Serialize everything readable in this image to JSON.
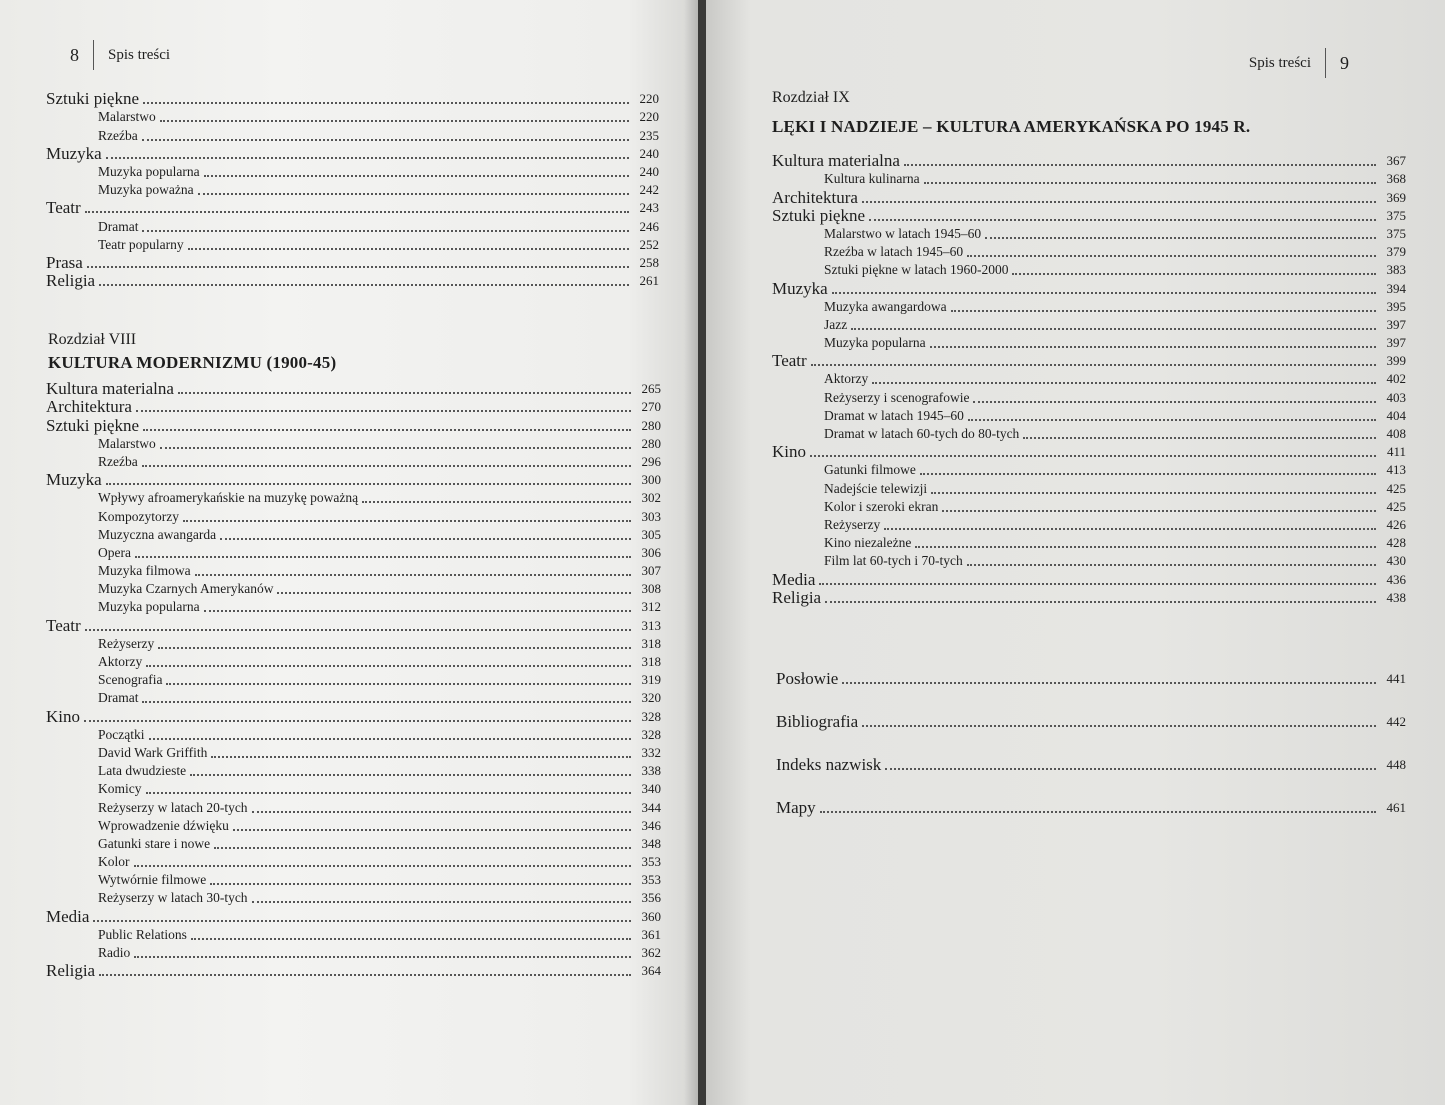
{
  "left_page": {
    "page_number": "8",
    "running_head": "Spis treści",
    "top_entries": [
      {
        "level": "main",
        "label": "Sztuki piękne",
        "page": "220"
      },
      {
        "level": "sub",
        "label": "Malarstwo",
        "page": "220"
      },
      {
        "level": "sub",
        "label": "Rzeźba",
        "page": "235"
      },
      {
        "level": "main",
        "label": "Muzyka",
        "page": "240"
      },
      {
        "level": "sub",
        "label": "Muzyka popularna",
        "page": "240"
      },
      {
        "level": "sub",
        "label": "Muzyka poważna",
        "page": "242"
      },
      {
        "level": "main",
        "label": "Teatr",
        "page": "243"
      },
      {
        "level": "sub",
        "label": "Dramat",
        "page": "246"
      },
      {
        "level": "sub",
        "label": "Teatr popularny",
        "page": "252"
      },
      {
        "level": "main",
        "label": "Prasa",
        "page": "258"
      },
      {
        "level": "main",
        "label": "Religia",
        "page": "261"
      }
    ],
    "chapter": {
      "label": "Rozdział VIII",
      "title": "KULTURA MODERNIZMU (1900-45)"
    },
    "chapter_entries": [
      {
        "level": "main",
        "label": "Kultura materialna",
        "page": "265"
      },
      {
        "level": "main",
        "label": "Architektura",
        "page": "270"
      },
      {
        "level": "main",
        "label": "Sztuki piękne",
        "page": "280"
      },
      {
        "level": "sub",
        "label": "Malarstwo",
        "page": "280"
      },
      {
        "level": "sub",
        "label": "Rzeźba",
        "page": "296"
      },
      {
        "level": "main",
        "label": "Muzyka",
        "page": "300"
      },
      {
        "level": "sub",
        "label": "Wpływy afroamerykańskie na muzykę poważną",
        "page": "302"
      },
      {
        "level": "sub",
        "label": "Kompozytorzy",
        "page": "303"
      },
      {
        "level": "sub",
        "label": "Muzyczna awangarda",
        "page": "305"
      },
      {
        "level": "sub",
        "label": "Opera",
        "page": "306"
      },
      {
        "level": "sub",
        "label": "Muzyka filmowa",
        "page": "307"
      },
      {
        "level": "sub",
        "label": "Muzyka Czarnych Amerykanów",
        "page": "308"
      },
      {
        "level": "sub",
        "label": "Muzyka popularna",
        "page": "312"
      },
      {
        "level": "main",
        "label": "Teatr",
        "page": "313"
      },
      {
        "level": "sub",
        "label": "Reżyserzy",
        "page": "318"
      },
      {
        "level": "sub",
        "label": "Aktorzy",
        "page": "318"
      },
      {
        "level": "sub",
        "label": "Scenografia",
        "page": "319"
      },
      {
        "level": "sub",
        "label": "Dramat",
        "page": "320"
      },
      {
        "level": "main",
        "label": "Kino",
        "page": "328"
      },
      {
        "level": "sub",
        "label": "Początki",
        "page": "328"
      },
      {
        "level": "sub",
        "label": "David Wark Griffith",
        "page": "332"
      },
      {
        "level": "sub",
        "label": "Lata dwudzieste",
        "page": "338"
      },
      {
        "level": "sub",
        "label": "Komicy",
        "page": "340"
      },
      {
        "level": "sub",
        "label": "Reżyserzy w latach 20-tych",
        "page": "344"
      },
      {
        "level": "sub",
        "label": "Wprowadzenie dźwięku",
        "page": "346"
      },
      {
        "level": "sub",
        "label": "Gatunki stare i nowe",
        "page": "348"
      },
      {
        "level": "sub",
        "label": "Kolor",
        "page": "353"
      },
      {
        "level": "sub",
        "label": "Wytwórnie filmowe",
        "page": "353"
      },
      {
        "level": "sub",
        "label": "Reżyserzy w latach 30-tych",
        "page": "356"
      },
      {
        "level": "main",
        "label": "Media",
        "page": "360"
      },
      {
        "level": "sub",
        "label": "Public Relations",
        "page": "361"
      },
      {
        "level": "sub",
        "label": "Radio",
        "page": "362"
      },
      {
        "level": "main",
        "label": "Religia",
        "page": "364"
      }
    ]
  },
  "right_page": {
    "page_number": "9",
    "running_head": "Spis treści",
    "chapter": {
      "label": "Rozdział IX",
      "title": "LĘKI I NADZIEJE – KULTURA AMERYKAŃSKA PO 1945 R."
    },
    "chapter_entries": [
      {
        "level": "main",
        "label": "Kultura materialna",
        "page": "367"
      },
      {
        "level": "sub",
        "label": "Kultura kulinarna",
        "page": "368"
      },
      {
        "level": "main",
        "label": "Architektura",
        "page": "369"
      },
      {
        "level": "main",
        "label": "Sztuki piękne",
        "page": "375"
      },
      {
        "level": "sub",
        "label": "Malarstwo w latach 1945–60",
        "page": "375"
      },
      {
        "level": "sub",
        "label": "Rzeźba w latach 1945–60",
        "page": "379"
      },
      {
        "level": "sub",
        "label": "Sztuki piękne w latach 1960-2000",
        "page": "383"
      },
      {
        "level": "main",
        "label": "Muzyka",
        "page": "394"
      },
      {
        "level": "sub",
        "label": "Muzyka awangardowa",
        "page": "395"
      },
      {
        "level": "sub",
        "label": "Jazz",
        "page": "397"
      },
      {
        "level": "sub",
        "label": "Muzyka popularna",
        "page": "397"
      },
      {
        "level": "main",
        "label": "Teatr",
        "page": "399"
      },
      {
        "level": "sub",
        "label": "Aktorzy",
        "page": "402"
      },
      {
        "level": "sub",
        "label": "Reżyserzy i scenografowie",
        "page": "403"
      },
      {
        "level": "sub",
        "label": "Dramat w latach 1945–60",
        "page": "404"
      },
      {
        "level": "sub",
        "label": "Dramat w latach 60-tych do 80-tych",
        "page": "408"
      },
      {
        "level": "main",
        "label": "Kino",
        "page": "411"
      },
      {
        "level": "sub",
        "label": "Gatunki filmowe",
        "page": "413"
      },
      {
        "level": "sub",
        "label": "Nadejście telewizji",
        "page": "425"
      },
      {
        "level": "sub",
        "label": "Kolor i szeroki ekran",
        "page": "425"
      },
      {
        "level": "sub",
        "label": "Reżyserzy",
        "page": "426"
      },
      {
        "level": "sub",
        "label": "Kino niezależne",
        "page": "428"
      },
      {
        "level": "sub",
        "label": "Film lat 60-tych i 70-tych",
        "page": "430"
      },
      {
        "level": "main",
        "label": "Media",
        "page": "436"
      },
      {
        "level": "main",
        "label": "Religia",
        "page": "438"
      }
    ],
    "end_matter": [
      {
        "level": "end",
        "label": "Posłowie",
        "page": "441"
      },
      {
        "level": "end",
        "label": "Bibliografia",
        "page": "442"
      },
      {
        "level": "end",
        "label": "Indeks nazwisk",
        "page": "448"
      },
      {
        "level": "end",
        "label": "Mapy",
        "page": "461"
      }
    ]
  }
}
